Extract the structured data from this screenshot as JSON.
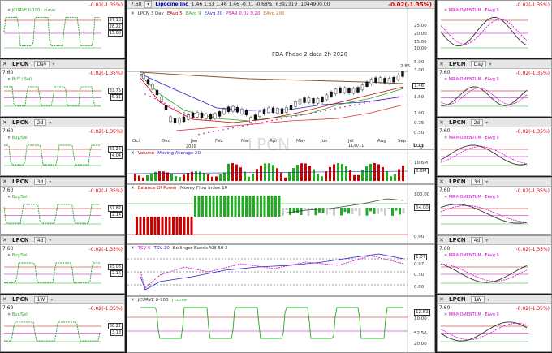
{
  "symbol": "LPCN",
  "change_text": "-0.02(-1.35%)",
  "last_price": "7.60",
  "left_panels": [
    {
      "id": "l0",
      "timeframe": "",
      "legend": "JCURVE 0-100 · curve",
      "box_a": "97.10",
      "box_b": "28.22",
      "box_c": "15.00"
    },
    {
      "id": "l1",
      "timeframe": "Day",
      "legend": "BUY / Sell",
      "box_a": "83.75",
      "box_b": "5.11"
    },
    {
      "id": "l2",
      "timeframe": "2d",
      "legend": "Buy/Sell",
      "box_a": "83.26",
      "box_b": "4.04"
    },
    {
      "id": "l3",
      "timeframe": "3d",
      "legend": "Buy/Sell",
      "box_a": "87.82",
      "box_b": "2.14"
    },
    {
      "id": "l4",
      "timeframe": "4d",
      "legend": "Buy/Sell",
      "box_a": "93.03",
      "box_b": "2.16"
    },
    {
      "id": "l5",
      "timeframe": "1W",
      "legend": "Buy/Sell",
      "box_a": "80.22",
      "box_b": "3.18"
    }
  ],
  "right_panels": [
    {
      "id": "r0",
      "timeframe": "",
      "legend": "MR-MOMENTUM · EAvg 9"
    },
    {
      "id": "r1",
      "timeframe": "Day",
      "legend": "MR-MOMENTUM · EAvg 9"
    },
    {
      "id": "r2",
      "timeframe": "2d",
      "legend": "MR-MOMENTUM · EAvg 9"
    },
    {
      "id": "r3",
      "timeframe": "3d",
      "legend": "MR-MOMENTUM · EAvg 9"
    },
    {
      "id": "r4",
      "timeframe": "4d",
      "legend": "MR-MOMENTUM · EAvg 9"
    },
    {
      "id": "r5",
      "timeframe": "1W",
      "legend": "MR-MOMENTUM · EAvg 9"
    }
  ],
  "main": {
    "company": "Lipocine Inc",
    "ohlc": "1.46  1.53  1.46  1.46  -0.01  -0.68%",
    "volume": "6392319",
    "avg_volume": "1044900.00",
    "legend": [
      "LPCN 3 Day",
      "EAvg 5",
      "EAvg 9",
      "EAvg 20",
      "PSAR 0.02 0.20",
      "EAvg 200"
    ],
    "annotation": "FDA Phase 2 data 2h 2020",
    "watermark": "LPCN",
    "price_axis": [
      "25.00",
      "20.00",
      "15.00",
      "10.00",
      "5.00",
      "3.00",
      "2.00",
      "1.50",
      "1.00",
      "0.75",
      "0.50",
      "0.25"
    ],
    "level_285": "2.85",
    "level_146": "1.46",
    "log_label": "Log",
    "date_label": "11/8/11",
    "months": [
      "Oct",
      "Dec",
      "Jan",
      "Feb",
      "Mar",
      "Apr",
      "May",
      "Jun",
      "Jul",
      "Aug",
      "Sep"
    ],
    "year_label": "2020",
    "volume_legend": [
      "Volume",
      "Moving Average 20"
    ],
    "volume_values": [
      "10.6M",
      "6.6M"
    ],
    "bop_legend": [
      "Balance Of Power",
      "Money Flow Index 10"
    ],
    "bop_values": [
      "100.00",
      "64.00",
      "0.00"
    ],
    "tsv_legend": [
      "TSV 5",
      "TSV 20",
      "Bollinger Bands %B 50 2"
    ],
    "tsv_values": [
      "1.07",
      "0.97",
      "0.50",
      "0.00"
    ],
    "jc_legend": [
      "JCURVE 0-100",
      "j curve"
    ],
    "jc_values": [
      "12.62",
      "10.00",
      "52.56",
      "20.00"
    ]
  }
}
